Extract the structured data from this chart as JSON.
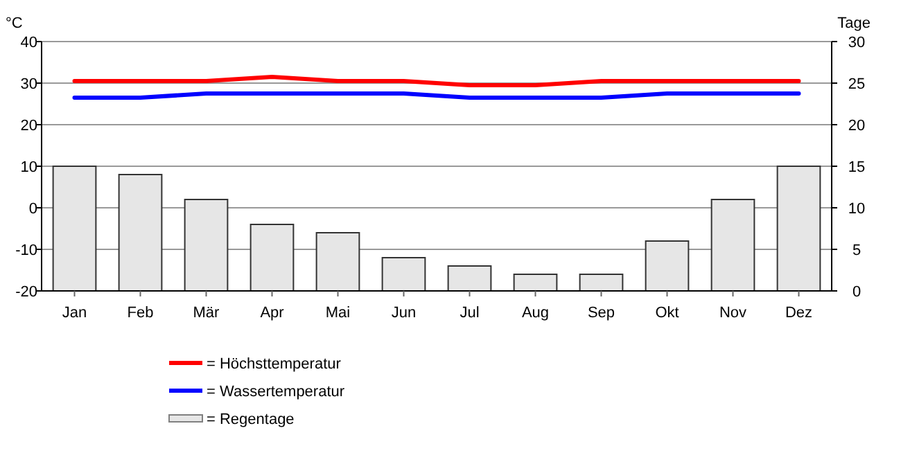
{
  "chart_data": {
    "type": "bar",
    "categories": [
      "Jan",
      "Feb",
      "Mär",
      "Apr",
      "Mai",
      "Jun",
      "Jul",
      "Aug",
      "Sep",
      "Okt",
      "Nov",
      "Dez"
    ],
    "ylabel": "°C",
    "y2label": "Tage",
    "ylim": [
      -20,
      40
    ],
    "yticks": [
      -20,
      -10,
      0,
      10,
      20,
      30,
      40
    ],
    "y2lim": [
      0,
      30
    ],
    "y2ticks": [
      0,
      5,
      10,
      15,
      20,
      25,
      30
    ],
    "grid": "y",
    "legend": "bottom",
    "series": [
      {
        "name": "= Höchsttemperatur",
        "type": "line",
        "color": "#ff0000",
        "values": [
          30.5,
          30.5,
          30.5,
          31.5,
          30.5,
          30.5,
          29.5,
          29.5,
          30.5,
          30.5,
          30.5,
          30.5
        ]
      },
      {
        "name": "= Wassertemperatur",
        "type": "line",
        "color": "#0000ff",
        "values": [
          26.5,
          26.5,
          27.5,
          27.5,
          27.5,
          27.5,
          26.5,
          26.5,
          26.5,
          27.5,
          27.5,
          27.5
        ]
      },
      {
        "name": "= Regentage",
        "axis": "y2",
        "color": "#e6e6e6",
        "values": [
          15,
          14,
          11,
          8,
          7,
          4,
          3,
          2,
          2,
          6,
          11,
          15
        ]
      }
    ]
  }
}
